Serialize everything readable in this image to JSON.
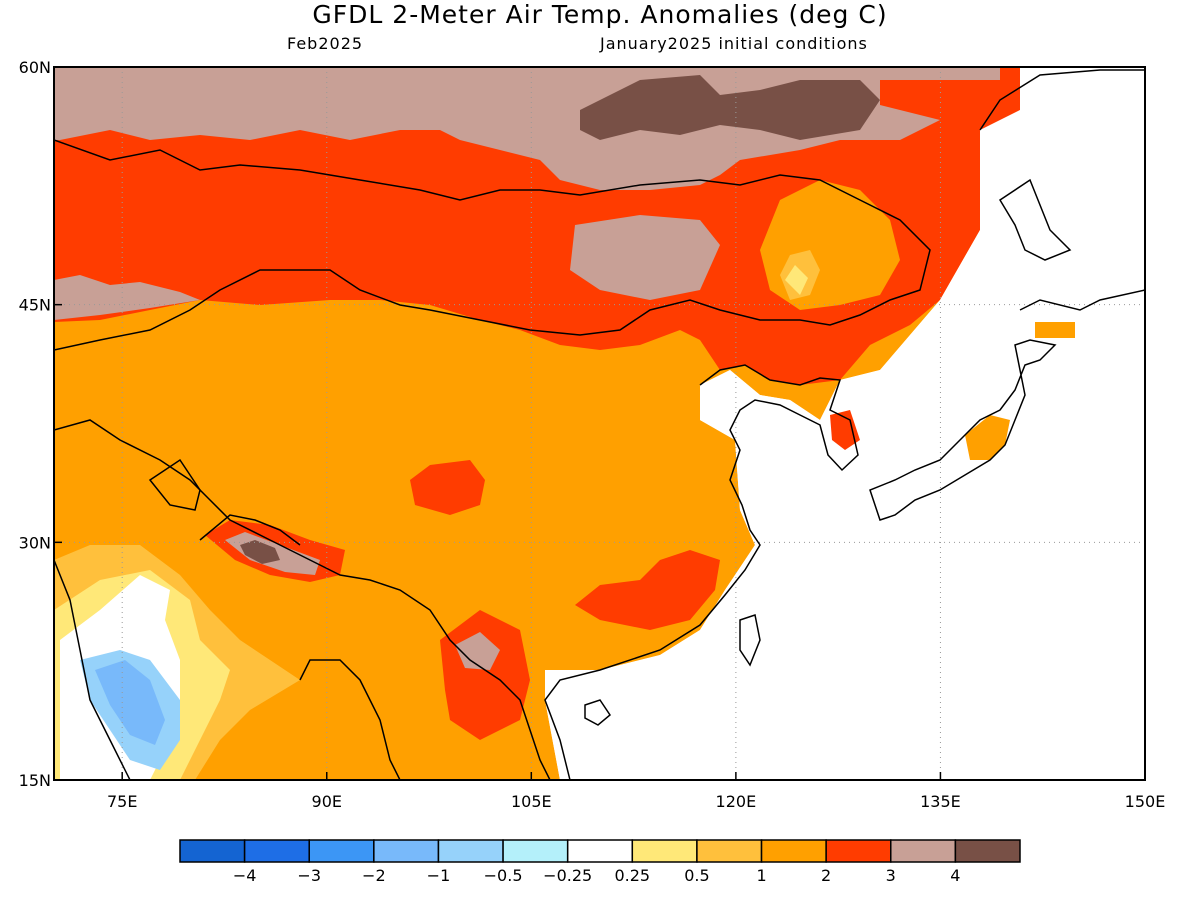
{
  "header": {
    "title": "GFDL 2-Meter Air Temp. Anomalies (deg C)",
    "valid_month": "Feb2025",
    "init_conditions": "January2025 initial conditions"
  },
  "map": {
    "lon_range": [
      70,
      150
    ],
    "lat_range": [
      15,
      60
    ],
    "lon_ticks": [
      {
        "value": 75,
        "label": "75E"
      },
      {
        "value": 90,
        "label": "90E"
      },
      {
        "value": 105,
        "label": "105E"
      },
      {
        "value": 120,
        "label": "120E"
      },
      {
        "value": 135,
        "label": "135E"
      },
      {
        "value": 150,
        "label": "150E"
      }
    ],
    "lat_ticks": [
      {
        "value": 15,
        "label": "15N"
      },
      {
        "value": 30,
        "label": "30N"
      },
      {
        "value": 45,
        "label": "45N"
      },
      {
        "value": 60,
        "label": "60N"
      }
    ],
    "grid": true
  },
  "colorbar": {
    "colors": [
      "#1464d2",
      "#1e6ee6",
      "#3c96f5",
      "#78b9fa",
      "#96d2fa",
      "#b4f0fa",
      "#ffffff",
      "#ffe878",
      "#ffc03c",
      "#ffa000",
      "#ff3c00",
      "#c8a096",
      "#785046"
    ],
    "labels": [
      "-4",
      "-3",
      "-2",
      "-1",
      "-0.5",
      "-0.25",
      "0.25",
      "0.5",
      "1",
      "2",
      "3",
      "4"
    ]
  }
}
